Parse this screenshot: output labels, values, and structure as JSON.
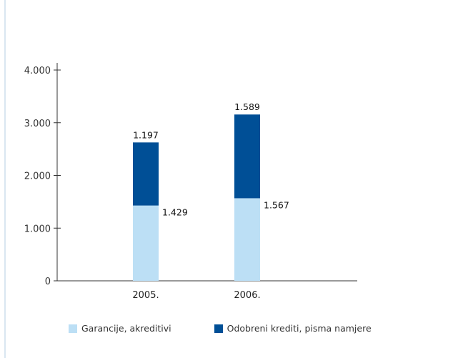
{
  "chart_data": {
    "type": "bar",
    "stacked": true,
    "categories": [
      "2005.",
      "2006."
    ],
    "series": [
      {
        "name": "Garancije, akreditivi",
        "values": [
          1429,
          1567
        ],
        "color": "#bcdff5",
        "labels": [
          "1.429",
          "1.567"
        ]
      },
      {
        "name": "Odobreni krediti, pisma namjere",
        "values": [
          1197,
          1589
        ],
        "color": "#004f96",
        "labels": [
          "1.197",
          "1.589"
        ]
      }
    ],
    "ylim": [
      0,
      4000
    ],
    "yticks": [
      0,
      1000,
      2000,
      3000,
      4000
    ],
    "ytick_labels": [
      "0",
      "1.000",
      "2.000",
      "3.000",
      "4.000"
    ],
    "legend_position": "bottom",
    "grid": false
  }
}
